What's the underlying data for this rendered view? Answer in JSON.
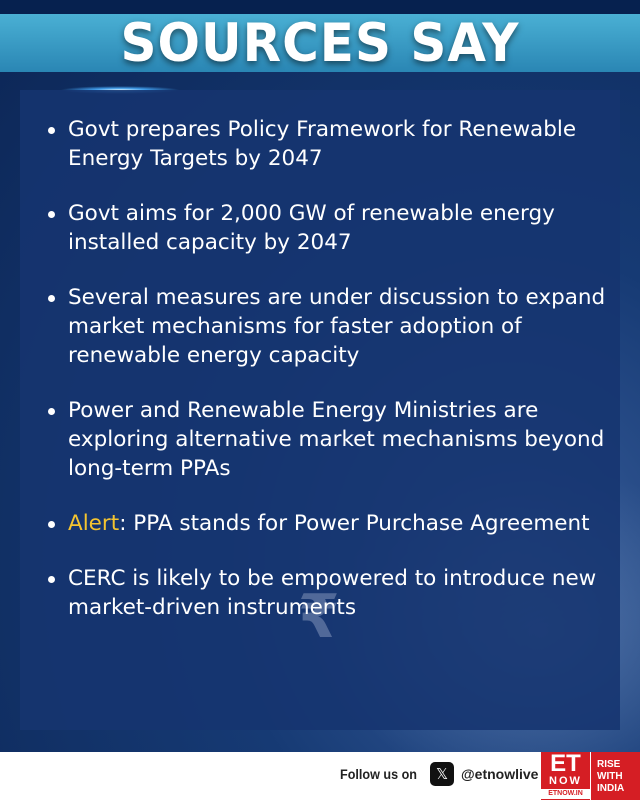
{
  "header": {
    "title": "SOURCES SAY"
  },
  "bullets": [
    {
      "text": "Govt prepares Policy Framework for Renewable Energy Targets by 2047"
    },
    {
      "text": "Govt aims for 2,000 GW of renewable energy installed capacity by 2047"
    },
    {
      "text": "Several measures are under discussion to expand market mechanisms for faster adoption of renewable energy capacity"
    },
    {
      "text": "Power and Renewable Energy Ministries are exploring alternative market mechanisms beyond long-term PPAs"
    },
    {
      "label": "Alert",
      "text": ": PPA stands for Power Purchase Agreement"
    },
    {
      "text": "CERC is likely to be empowered to introduce new market-driven instruments"
    }
  ],
  "footer": {
    "follow": "Follow us on",
    "handle": "@etnowlive",
    "social_icon": "x-icon",
    "logo": {
      "et": "ET",
      "now": "NOW",
      "site": "ETNOW.IN",
      "tagline": [
        "RISE",
        "WITH",
        "INDIA"
      ]
    }
  },
  "colors": {
    "accent": "#f4c430",
    "band": "#3a9cc8",
    "panel": "#163470",
    "brand": "#d51e24"
  }
}
